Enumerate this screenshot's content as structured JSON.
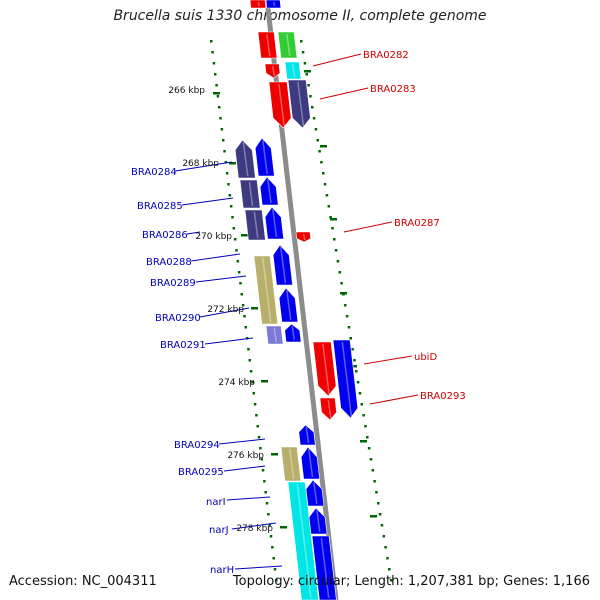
{
  "title": "Brucella suis 1330 chromosome II, complete genome",
  "footer": {
    "accession": "Accession: NC_004311",
    "topology": "Topology: circular; Length: 1,207,381 bp; Genes: 1,166"
  },
  "colors": {
    "backbone": "#8c8c8c",
    "left_label": "#0000bb",
    "right_label": "#cc0000",
    "tick": "#006600",
    "red": "#ee0000",
    "blue": "#0000ee",
    "dark_purple": "#3d3a80",
    "olive": "#b8b06a",
    "cyan": "#00e6e6",
    "green": "#33cc33",
    "lavender": "#7b78d6"
  },
  "kbp_ticks": [
    "266 kbp",
    "268 kbp",
    "270 kbp",
    "272 kbp",
    "274 kbp",
    "276 kbp",
    "278 kbp"
  ],
  "left_genes": [
    "BRA0284",
    "BRA0285",
    "BRA0286",
    "BRA0288",
    "BRA0289",
    "BRA0290",
    "BRA0291",
    "BRA0294",
    "BRA0295",
    "narI",
    "narJ",
    "narH"
  ],
  "right_genes": [
    "BRA0282",
    "BRA0283",
    "BRA0287",
    "ubiD",
    "BRA0293"
  ]
}
